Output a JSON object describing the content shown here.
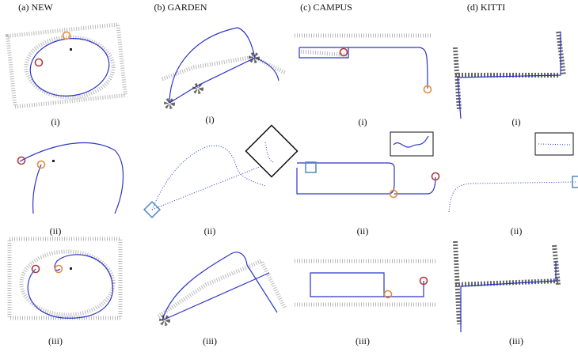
{
  "columns": [
    {
      "title": "(a) NEW",
      "panels": [
        "(i)",
        "(ii)",
        "(iii)"
      ]
    },
    {
      "title": "(b) GARDEN",
      "panels": [
        "(i)",
        "(ii)",
        "(iii)"
      ]
    },
    {
      "title": "(c) CAMPUS",
      "panels": [
        "(i)",
        "(ii)",
        "(iii)"
      ]
    },
    {
      "title": "(d) KITTI",
      "panels": [
        "(i)",
        "(ii)",
        "(iii)"
      ]
    }
  ]
}
